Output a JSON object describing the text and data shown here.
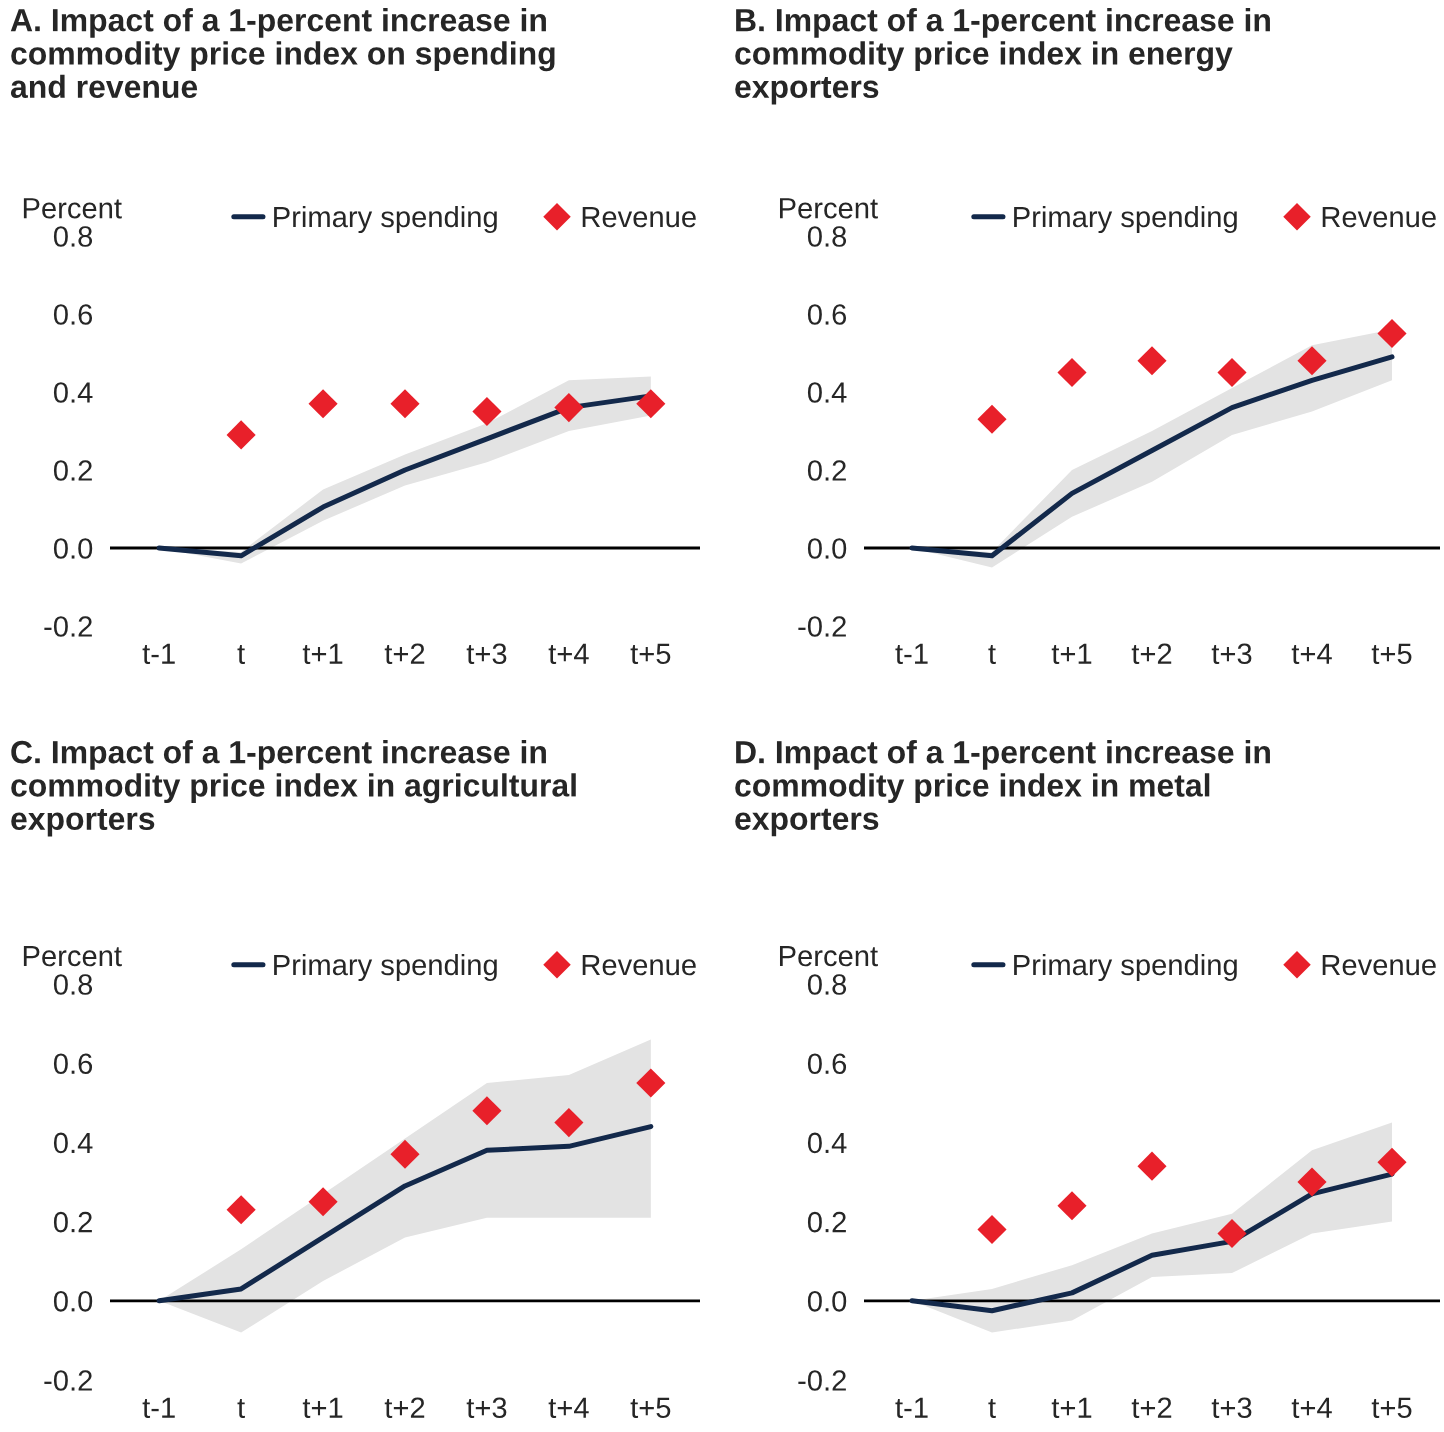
{
  "chart_data": [
    {
      "type": "line",
      "title": "A. Impact of a 1-percent increase in\ncommodity price index on spending\nand revenue",
      "ylabel": "Percent",
      "categories": [
        "t-1",
        "t",
        "t+1",
        "t+2",
        "t+3",
        "t+4",
        "t+5"
      ],
      "ylim": [
        -0.2,
        0.8
      ],
      "yticks": [
        {
          "value": -0.2,
          "label": "-0.2"
        },
        {
          "value": 0.0,
          "label": "0.0"
        },
        {
          "value": 0.2,
          "label": "0.2"
        },
        {
          "value": 0.4,
          "label": "0.4"
        },
        {
          "value": 0.6,
          "label": "0.6"
        },
        {
          "value": 0.8,
          "label": "0.8"
        }
      ],
      "grid": false,
      "legend": "top right",
      "ref_lines": [
        {
          "axis": "y",
          "value": 0,
          "color": "#000000"
        }
      ],
      "series": [
        {
          "name": "Primary spending",
          "color": "#13294b",
          "values": [
            0,
            -0.02,
            0.105,
            0.2,
            0.28,
            0.36,
            0.39
          ],
          "lower": [
            0,
            -0.04,
            0.07,
            0.16,
            0.22,
            0.3,
            0.34
          ],
          "upper": [
            0,
            -0.01,
            0.15,
            0.24,
            0.32,
            0.43,
            0.44
          ]
        },
        {
          "name": "Revenue",
          "type": "scatter",
          "marker": "diamond",
          "color": "#e8202a",
          "values": [
            null,
            0.29,
            0.37,
            0.37,
            0.35,
            0.36,
            0.37
          ]
        }
      ]
    },
    {
      "type": "line",
      "title": "B. Impact of a 1-percent increase in\ncommodity price index in energy\nexporters",
      "ylabel": "Percent",
      "categories": [
        "t-1",
        "t",
        "t+1",
        "t+2",
        "t+3",
        "t+4",
        "t+5"
      ],
      "ylim": [
        -0.2,
        0.8
      ],
      "yticks": [
        {
          "value": -0.2,
          "label": "-0.2"
        },
        {
          "value": 0.0,
          "label": "0.0"
        },
        {
          "value": 0.2,
          "label": "0.2"
        },
        {
          "value": 0.4,
          "label": "0.4"
        },
        {
          "value": 0.6,
          "label": "0.6"
        },
        {
          "value": 0.8,
          "label": "0.8"
        }
      ],
      "grid": false,
      "legend": "top right",
      "ref_lines": [
        {
          "axis": "y",
          "value": 0,
          "color": "#000000"
        }
      ],
      "series": [
        {
          "name": "Primary spending",
          "color": "#13294b",
          "values": [
            0,
            -0.02,
            0.14,
            0.25,
            0.36,
            0.43,
            0.49
          ],
          "lower": [
            0,
            -0.05,
            0.08,
            0.17,
            0.29,
            0.35,
            0.43
          ],
          "upper": [
            0,
            -0.01,
            0.2,
            0.3,
            0.41,
            0.52,
            0.56
          ]
        },
        {
          "name": "Revenue",
          "type": "scatter",
          "marker": "diamond",
          "color": "#e8202a",
          "values": [
            null,
            0.33,
            0.45,
            0.48,
            0.45,
            0.48,
            0.55
          ]
        }
      ]
    },
    {
      "type": "line",
      "title": "C. Impact of a 1-percent increase in\ncommodity price index in agricultural\nexporters",
      "ylabel": "Percent",
      "categories": [
        "t-1",
        "t",
        "t+1",
        "t+2",
        "t+3",
        "t+4",
        "t+5"
      ],
      "ylim": [
        -0.2,
        0.8
      ],
      "yticks": [
        {
          "value": -0.2,
          "label": "-0.2"
        },
        {
          "value": 0.0,
          "label": "0.0"
        },
        {
          "value": 0.2,
          "label": "0.2"
        },
        {
          "value": 0.4,
          "label": "0.4"
        },
        {
          "value": 0.6,
          "label": "0.6"
        },
        {
          "value": 0.8,
          "label": "0.8"
        }
      ],
      "grid": false,
      "legend": "top right",
      "ref_lines": [
        {
          "axis": "y",
          "value": 0,
          "color": "#000000"
        }
      ],
      "series": [
        {
          "name": "Primary spending",
          "color": "#13294b",
          "values": [
            0,
            0.03,
            0.16,
            0.29,
            0.38,
            0.39,
            0.44
          ],
          "lower": [
            0,
            -0.08,
            0.05,
            0.16,
            0.21,
            0.21,
            0.21
          ],
          "upper": [
            0,
            0.13,
            0.27,
            0.41,
            0.55,
            0.57,
            0.66
          ]
        },
        {
          "name": "Revenue",
          "type": "scatter",
          "marker": "diamond",
          "color": "#e8202a",
          "values": [
            null,
            0.23,
            0.25,
            0.37,
            0.48,
            0.45,
            0.55
          ]
        }
      ]
    },
    {
      "type": "line",
      "title": "D. Impact of a 1-percent increase in\ncommodity price index in metal\nexporters",
      "ylabel": "Percent",
      "categories": [
        "t-1",
        "t",
        "t+1",
        "t+2",
        "t+3",
        "t+4",
        "t+5"
      ],
      "ylim": [
        -0.2,
        0.8
      ],
      "yticks": [
        {
          "value": -0.2,
          "label": "-0.2"
        },
        {
          "value": 0.0,
          "label": "0.0"
        },
        {
          "value": 0.2,
          "label": "0.2"
        },
        {
          "value": 0.4,
          "label": "0.4"
        },
        {
          "value": 0.6,
          "label": "0.6"
        },
        {
          "value": 0.8,
          "label": "0.8"
        }
      ],
      "grid": false,
      "legend": "top right",
      "ref_lines": [
        {
          "axis": "y",
          "value": 0,
          "color": "#000000"
        }
      ],
      "series": [
        {
          "name": "Primary spending",
          "color": "#13294b",
          "values": [
            0,
            -0.025,
            0.02,
            0.115,
            0.15,
            0.27,
            0.32
          ],
          "lower": [
            0,
            -0.08,
            -0.05,
            0.06,
            0.07,
            0.17,
            0.2
          ],
          "upper": [
            0,
            0.03,
            0.09,
            0.17,
            0.22,
            0.38,
            0.45
          ]
        },
        {
          "name": "Revenue",
          "type": "scatter",
          "marker": "diamond",
          "color": "#e8202a",
          "values": [
            null,
            0.18,
            0.24,
            0.34,
            0.17,
            0.3,
            0.35
          ]
        }
      ]
    }
  ]
}
